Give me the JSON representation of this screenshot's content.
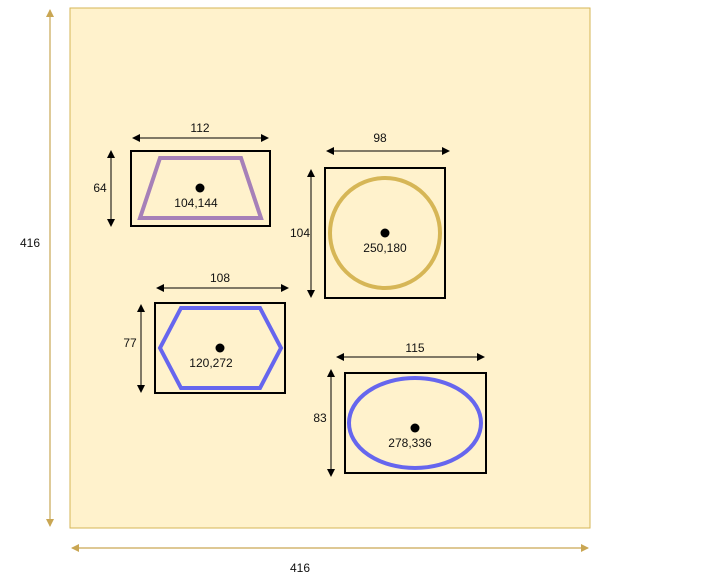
{
  "colors": {
    "canvas_fill": "#fff2cc",
    "canvas_stroke": "#d6b656",
    "box_stroke": "#000000",
    "trapezoid": "#a680b8",
    "circle": "#d6b656",
    "hexagon": "#6666ee",
    "ellipse": "#6666ee",
    "dim_arrow_canvas": "#c9a653",
    "dim_arrow_shape": "#000000"
  },
  "canvas": {
    "width_label": "416",
    "height_label": "416"
  },
  "shapes": [
    {
      "id": "trapezoid",
      "type": "trapezoid",
      "center_label": "104,144",
      "width_label": "112",
      "height_label": "64"
    },
    {
      "id": "circle",
      "type": "circle",
      "center_label": "250,180",
      "width_label": "98",
      "height_label": "104"
    },
    {
      "id": "hexagon",
      "type": "hexagon",
      "center_label": "120,272",
      "width_label": "108",
      "height_label": "77"
    },
    {
      "id": "ellipse",
      "type": "ellipse",
      "center_label": "278,336",
      "width_label": "115",
      "height_label": "83"
    }
  ]
}
